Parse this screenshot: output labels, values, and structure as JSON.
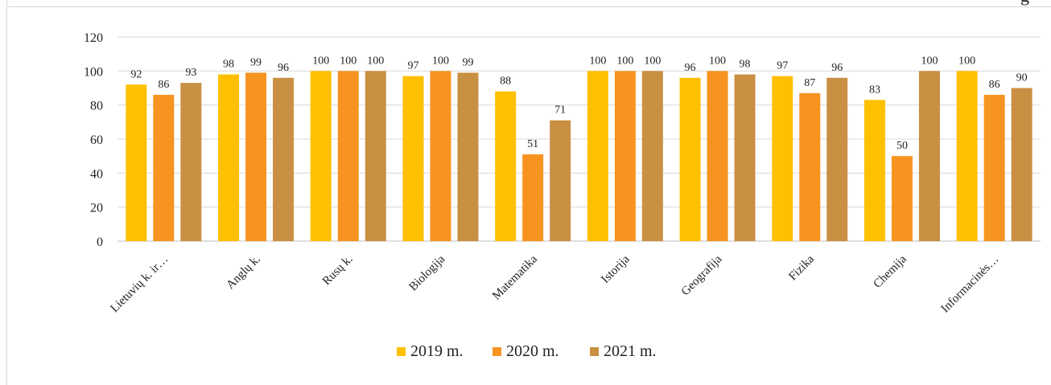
{
  "corner_text": "g",
  "chart_data": {
    "type": "bar",
    "categories": [
      "Lietuvių k. ir…",
      "Anglų k.",
      "Rusų k.",
      "Biologija",
      "Matematika",
      "Istorija",
      "Geografija",
      "Fizika",
      "Chemija",
      "Informacinės…"
    ],
    "series": [
      {
        "name": "2019 m.",
        "color": "#ffc000",
        "values": [
          92,
          98,
          100,
          97,
          88,
          100,
          96,
          97,
          83,
          100
        ]
      },
      {
        "name": "2020 m.",
        "color": "#f79421",
        "values": [
          86,
          99,
          100,
          100,
          51,
          100,
          100,
          87,
          50,
          86
        ]
      },
      {
        "name": "2021 m.",
        "color": "#c99043",
        "values": [
          93,
          96,
          100,
          99,
          71,
          100,
          98,
          96,
          100,
          90
        ]
      }
    ],
    "ylim": [
      0,
      120
    ],
    "yticks": [
      0,
      20,
      40,
      60,
      80,
      100,
      120
    ],
    "grid": true,
    "legend": "bottom"
  }
}
